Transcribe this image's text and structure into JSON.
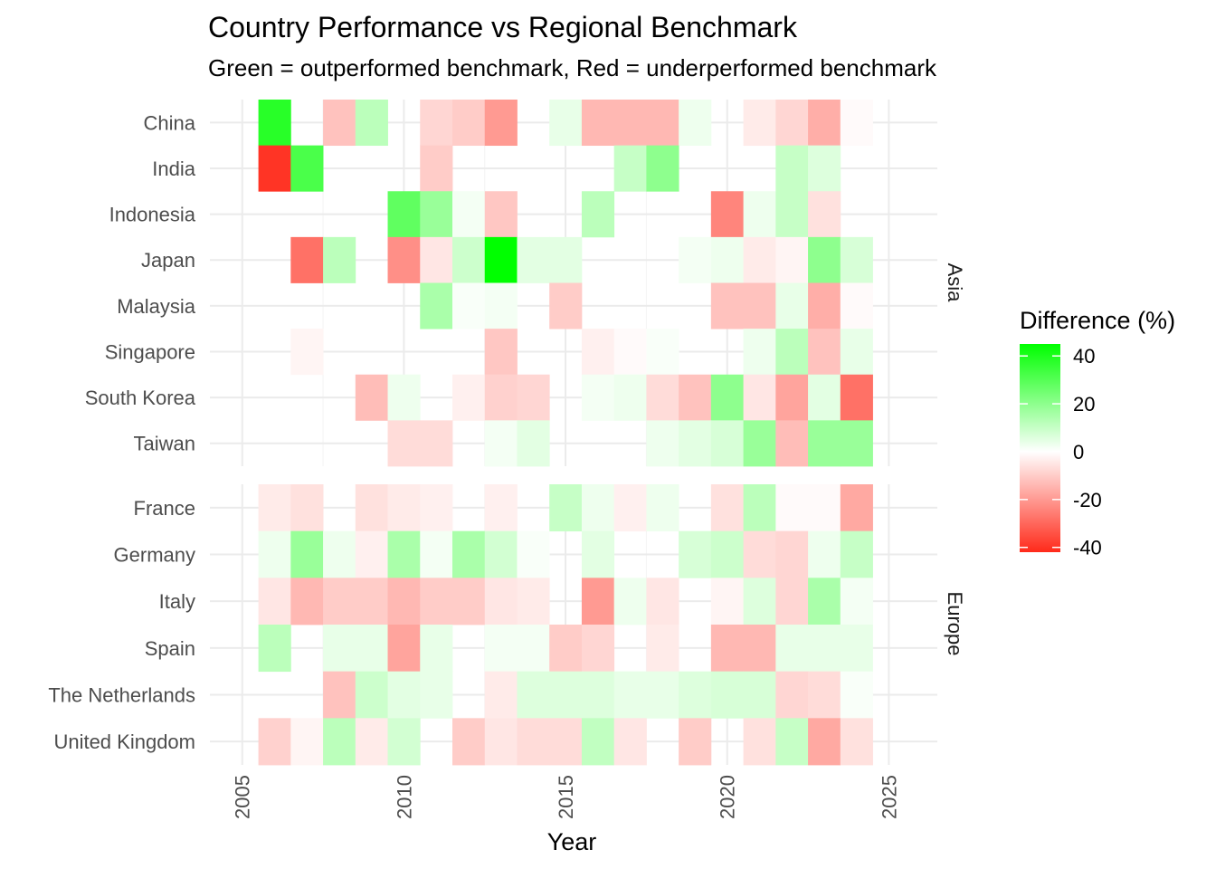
{
  "chart_data": {
    "type": "heatmap",
    "title": "Country Performance vs Regional Benchmark",
    "subtitle": "Green = outperformed benchmark, Red = underperformed benchmark",
    "xlabel": "Year",
    "ylabel": "",
    "x_ticks": [
      "2005",
      "2010",
      "2015",
      "2020",
      "2025"
    ],
    "xlim": [
      2004,
      2026.5
    ],
    "legend": {
      "title": "Difference (%)",
      "ticks": [
        "40",
        "20",
        "0",
        "-20",
        "-40"
      ],
      "range": [
        -42,
        45
      ],
      "low_color": "#ff2a1a",
      "mid_color": "#ffffff",
      "high_color": "#00ff00",
      "placement": "right"
    },
    "years": [
      2006,
      2007,
      2008,
      2009,
      2010,
      2011,
      2012,
      2013,
      2014,
      2015,
      2016,
      2017,
      2018,
      2019,
      2020,
      2021,
      2022,
      2023,
      2024
    ],
    "facets": [
      {
        "name": "Asia",
        "countries": [
          {
            "name": "Taiwan",
            "values": [
              null,
              null,
              null,
              null,
              -7,
              -7,
              null,
              2,
              5,
              null,
              null,
              null,
              3,
              5,
              7,
              18,
              -13,
              18,
              18
            ]
          },
          {
            "name": "South Korea",
            "values": [
              null,
              null,
              null,
              -13,
              3,
              null,
              -3,
              -9,
              -8,
              null,
              2,
              3,
              -7,
              -12,
              20,
              -5,
              -18,
              5,
              -28
            ]
          },
          {
            "name": "Singapore",
            "values": [
              null,
              -2,
              null,
              null,
              null,
              null,
              null,
              -11,
              null,
              null,
              -3,
              -1,
              1,
              null,
              null,
              3,
              12,
              -12,
              4
            ]
          },
          {
            "name": "Malaysia",
            "values": [
              null,
              null,
              null,
              null,
              null,
              15,
              1,
              2,
              null,
              -10,
              null,
              null,
              null,
              null,
              -12,
              -12,
              4,
              -16,
              -1
            ]
          },
          {
            "name": "Japan",
            "values": [
              null,
              -28,
              12,
              null,
              -22,
              -5,
              9,
              45,
              5,
              5,
              null,
              null,
              null,
              2,
              3,
              -4,
              -2,
              20,
              7
            ]
          },
          {
            "name": "Indonesia",
            "values": [
              null,
              null,
              null,
              null,
              28,
              18,
              2,
              -11,
              null,
              null,
              12,
              null,
              null,
              null,
              -24,
              3,
              10,
              -6,
              null
            ]
          },
          {
            "name": "India",
            "values": [
              -40,
              32,
              null,
              null,
              null,
              -10,
              null,
              null,
              null,
              null,
              null,
              10,
              20,
              null,
              null,
              null,
              10,
              6,
              null
            ]
          },
          {
            "name": "China",
            "values": [
              38,
              null,
              -12,
              12,
              null,
              -8,
              -10,
              -20,
              null,
              4,
              -14,
              -14,
              -14,
              3,
              null,
              -4,
              -8,
              -16,
              -1
            ]
          }
        ]
      },
      {
        "name": "Europe",
        "countries": [
          {
            "name": "United Kingdom",
            "values": [
              -9,
              -2,
              12,
              -4,
              8,
              null,
              -10,
              -5,
              -7,
              -7,
              11,
              -5,
              null,
              -10,
              null,
              -6,
              10,
              -17,
              -6
            ]
          },
          {
            "name": "The Netherlands",
            "values": [
              null,
              null,
              -12,
              9,
              5,
              4,
              null,
              -4,
              6,
              6,
              6,
              4,
              4,
              6,
              7,
              7,
              -8,
              -7,
              1
            ]
          },
          {
            "name": "Spain",
            "values": [
              12,
              null,
              4,
              4,
              -18,
              4,
              null,
              2,
              2,
              -10,
              -8,
              null,
              -4,
              null,
              -14,
              -14,
              4,
              4,
              4
            ]
          },
          {
            "name": "Italy",
            "values": [
              -5,
              -14,
              -10,
              -10,
              -14,
              -10,
              -10,
              -5,
              -4,
              null,
              -20,
              3,
              -5,
              null,
              -2,
              6,
              -8,
              15,
              2
            ]
          },
          {
            "name": "Germany",
            "values": [
              3,
              18,
              3,
              -3,
              15,
              2,
              15,
              8,
              1,
              null,
              5,
              null,
              null,
              7,
              9,
              -7,
              -8,
              3,
              10
            ]
          },
          {
            "name": "France",
            "values": [
              -4,
              -6,
              null,
              -6,
              -4,
              -3,
              null,
              -3,
              null,
              10,
              3,
              -3,
              3,
              null,
              -6,
              12,
              -1,
              -1,
              -17
            ]
          }
        ]
      }
    ]
  }
}
